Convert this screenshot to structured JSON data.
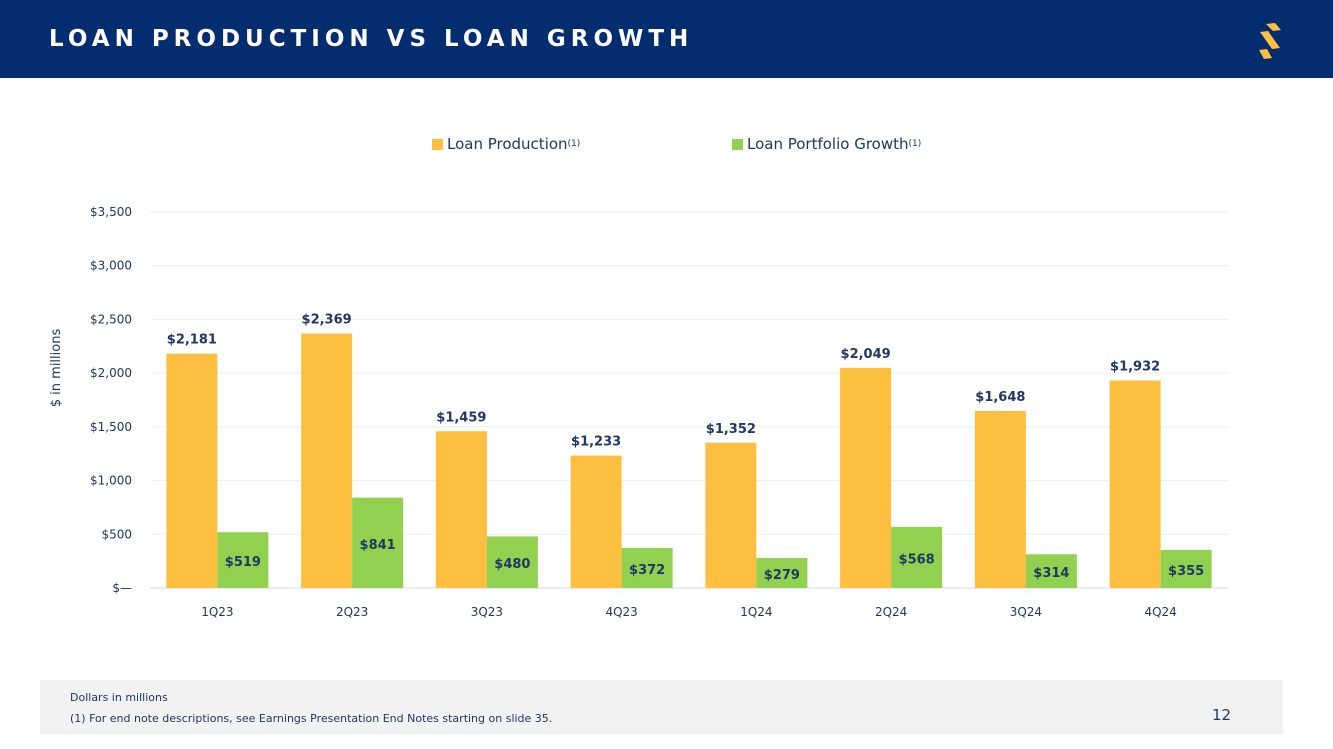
{
  "header": {
    "title": "LOAN PRODUCTION VS LOAN GROWTH",
    "logo": "S"
  },
  "colors": {
    "navy": "#032D6F",
    "production": "#FDBF3F",
    "growth": "#92D050",
    "label": "#1F3864"
  },
  "chart_data": {
    "type": "bar",
    "title": "",
    "ylabel": "$ in millions",
    "xlabel": "",
    "ylim": [
      0,
      3500
    ],
    "yticks": [
      0,
      500,
      1000,
      1500,
      2000,
      2500,
      3000,
      3500
    ],
    "ytick_labels": [
      "$—",
      "$500",
      "$1,000",
      "$1,500",
      "$2,000",
      "$2,500",
      "$3,000",
      "$3,500"
    ],
    "grid": true,
    "legend_placement": "top",
    "categories": [
      "1Q23",
      "2Q23",
      "3Q23",
      "4Q23",
      "1Q24",
      "2Q24",
      "3Q24",
      "4Q24"
    ],
    "series": [
      {
        "name": "Loan Production",
        "note": "(1)",
        "color": "#FDBF3F",
        "values": [
          2181,
          2369,
          1459,
          1233,
          1352,
          2049,
          1648,
          1932
        ],
        "labels": [
          "$2,181",
          "$2,369",
          "$1,459",
          "$1,233",
          "$1,352",
          "$2,049",
          "$1,648",
          "$1,932"
        ]
      },
      {
        "name": "Loan Portfolio Growth",
        "note": "(1)",
        "color": "#92D050",
        "values": [
          519,
          841,
          480,
          372,
          279,
          568,
          314,
          355
        ],
        "labels": [
          "$519",
          "$841",
          "$480",
          "$372",
          "$279",
          "$568",
          "$314",
          "$355"
        ]
      }
    ]
  },
  "footer": {
    "note1": "Dollars in millions",
    "note2": "(1)  For end note descriptions, see Earnings Presentation End Notes starting on slide 35.",
    "page": "12"
  }
}
